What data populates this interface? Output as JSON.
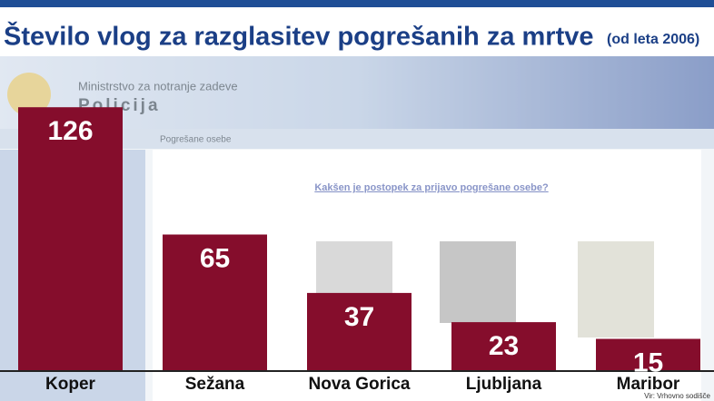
{
  "chart_data": {
    "type": "bar",
    "title": "Število vlog za razglasitev pogrešanih za mrtve",
    "subtitle": "(od leta 2006)",
    "categories": [
      "Koper",
      "Sežana",
      "Nova Gorica",
      "Ljubljana",
      "Maribor"
    ],
    "values": [
      126,
      65,
      37,
      23,
      15
    ],
    "color": "#850d2c",
    "source": "Vir: Vrhovno sodišče"
  },
  "background": {
    "ministry": "Ministrstvo za notranje zadeve",
    "police": "Policija",
    "section": "Pogrešane osebe",
    "link": "Kakšen je postopek za prijavo pogrešane osebe?"
  }
}
